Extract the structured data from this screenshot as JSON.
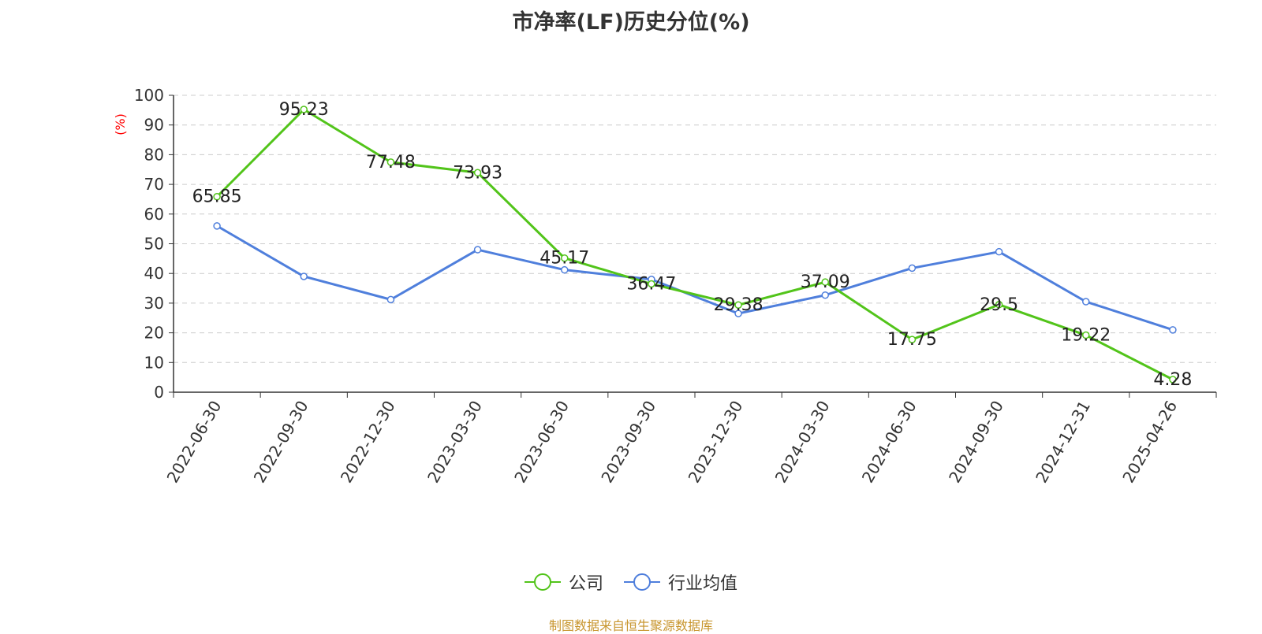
{
  "title": "市净率(LF)历史分位(%)",
  "source": "制图数据来自恒生聚源数据库",
  "colors": {
    "company": "#52c41a",
    "industry": "#4f7fdc",
    "unit": "#ff0000"
  },
  "chart_data": {
    "type": "line",
    "title": "市净率(LF)历史分位(%)",
    "ylabel": "(%)",
    "ylim": [
      0,
      100
    ],
    "yticks": [
      0,
      10,
      20,
      30,
      40,
      50,
      60,
      70,
      80,
      90,
      100
    ],
    "grid": true,
    "legend_position": "bottom-center",
    "categories": [
      "2022-06-30",
      "2022-09-30",
      "2022-12-30",
      "2023-03-30",
      "2023-06-30",
      "2023-09-30",
      "2023-12-30",
      "2024-03-30",
      "2024-06-30",
      "2024-09-30",
      "2024-12-31",
      "2025-04-26"
    ],
    "series": [
      {
        "name": "公司",
        "values": [
          65.85,
          95.23,
          77.48,
          73.93,
          45.17,
          36.47,
          29.38,
          37.09,
          17.75,
          29.5,
          19.22,
          4.28
        ],
        "labels": [
          "65.85",
          "95.23",
          "77.48",
          "73.93",
          "45.17",
          "36.47",
          "29.38",
          "37.09",
          "17.75",
          "29.5",
          "19.22",
          "4.28"
        ]
      },
      {
        "name": "行业均值",
        "values": [
          56,
          39,
          31.2,
          48,
          41.2,
          38,
          26.5,
          32.7,
          41.8,
          47.3,
          30.5,
          21
        ]
      }
    ]
  }
}
